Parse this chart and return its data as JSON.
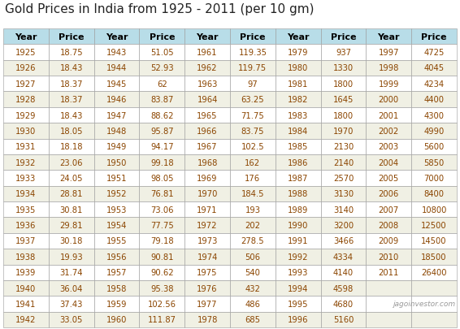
{
  "title": "Gold Prices in India from 1925 - 2011 (per 10 gm)",
  "watermark": "jagoinvestor.com",
  "header_bg": "#b8dde8",
  "row_bg_odd": "#ffffff",
  "row_bg_even": "#f0f0e4",
  "header_text_color": "#000000",
  "data_text_color": "#8B4500",
  "border_color": "#999999",
  "title_color": "#222222",
  "groups": [
    [
      [
        1925,
        "18.75"
      ],
      [
        1926,
        "18.43"
      ],
      [
        1927,
        "18.37"
      ],
      [
        1928,
        "18.37"
      ],
      [
        1929,
        "18.43"
      ],
      [
        1930,
        "18.05"
      ],
      [
        1931,
        "18.18"
      ],
      [
        1932,
        "23.06"
      ],
      [
        1933,
        "24.05"
      ],
      [
        1934,
        "28.81"
      ],
      [
        1935,
        "30.81"
      ],
      [
        1936,
        "29.81"
      ],
      [
        1937,
        "30.18"
      ],
      [
        1938,
        "19.93"
      ],
      [
        1939,
        "31.74"
      ],
      [
        1940,
        "36.04"
      ],
      [
        1941,
        "37.43"
      ],
      [
        1942,
        "33.05"
      ]
    ],
    [
      [
        1943,
        "51.05"
      ],
      [
        1944,
        "52.93"
      ],
      [
        1945,
        "62"
      ],
      [
        1946,
        "83.87"
      ],
      [
        1947,
        "88.62"
      ],
      [
        1948,
        "95.87"
      ],
      [
        1949,
        "94.17"
      ],
      [
        1950,
        "99.18"
      ],
      [
        1951,
        "98.05"
      ],
      [
        1952,
        "76.81"
      ],
      [
        1953,
        "73.06"
      ],
      [
        1954,
        "77.75"
      ],
      [
        1955,
        "79.18"
      ],
      [
        1956,
        "90.81"
      ],
      [
        1957,
        "90.62"
      ],
      [
        1958,
        "95.38"
      ],
      [
        1959,
        "102.56"
      ],
      [
        1960,
        "111.87"
      ]
    ],
    [
      [
        1961,
        "119.35"
      ],
      [
        1962,
        "119.75"
      ],
      [
        1963,
        "97"
      ],
      [
        1964,
        "63.25"
      ],
      [
        1965,
        "71.75"
      ],
      [
        1966,
        "83.75"
      ],
      [
        1967,
        "102.5"
      ],
      [
        1968,
        "162"
      ],
      [
        1969,
        "176"
      ],
      [
        1970,
        "184.5"
      ],
      [
        1971,
        "193"
      ],
      [
        1972,
        "202"
      ],
      [
        1973,
        "278.5"
      ],
      [
        1974,
        "506"
      ],
      [
        1975,
        "540"
      ],
      [
        1976,
        "432"
      ],
      [
        1977,
        "486"
      ],
      [
        1978,
        "685"
      ]
    ],
    [
      [
        1979,
        "937"
      ],
      [
        1980,
        "1330"
      ],
      [
        1981,
        "1800"
      ],
      [
        1982,
        "1645"
      ],
      [
        1983,
        "1800"
      ],
      [
        1984,
        "1970"
      ],
      [
        1985,
        "2130"
      ],
      [
        1986,
        "2140"
      ],
      [
        1987,
        "2570"
      ],
      [
        1988,
        "3130"
      ],
      [
        1989,
        "3140"
      ],
      [
        1990,
        "3200"
      ],
      [
        1991,
        "3466"
      ],
      [
        1992,
        "4334"
      ],
      [
        1993,
        "4140"
      ],
      [
        1994,
        "4598"
      ],
      [
        1995,
        "4680"
      ],
      [
        1996,
        "5160"
      ]
    ],
    [
      [
        1997,
        "4725"
      ],
      [
        1998,
        "4045"
      ],
      [
        1999,
        "4234"
      ],
      [
        2000,
        "4400"
      ],
      [
        2001,
        "4300"
      ],
      [
        2002,
        "4990"
      ],
      [
        2003,
        "5600"
      ],
      [
        2004,
        "5850"
      ],
      [
        2005,
        "7000"
      ],
      [
        2006,
        "8400"
      ],
      [
        2007,
        "10800"
      ],
      [
        2008,
        "12500"
      ],
      [
        2009,
        "14500"
      ],
      [
        2010,
        "18500"
      ],
      [
        2011,
        "26400"
      ]
    ]
  ]
}
